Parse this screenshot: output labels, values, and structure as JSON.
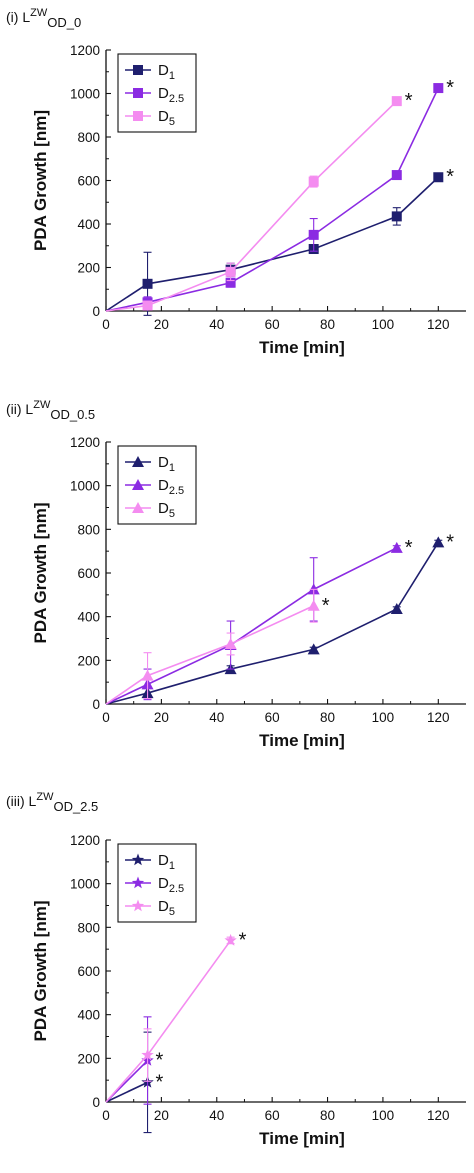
{
  "chart_data": [
    {
      "type": "line",
      "panel_label": "(i) L",
      "panel_sup": "ZW",
      "panel_sub": "OD_0",
      "xlabel": "Time [min]",
      "ylabel": "PDA Growth [nm]",
      "xlim": [
        0,
        130
      ],
      "ylim": [
        0,
        1200
      ],
      "xticks": [
        0,
        20,
        40,
        60,
        80,
        100,
        120
      ],
      "yticks": [
        0,
        200,
        400,
        600,
        800,
        1000,
        1200
      ],
      "marker": "square",
      "legend_position": "top-left",
      "series": [
        {
          "name": "D",
          "sub": "1",
          "color": "#1f1f6e",
          "points": [
            [
              0,
              0
            ],
            [
              15,
              125
            ],
            [
              45,
              190
            ],
            [
              75,
              285
            ],
            [
              105,
              435
            ],
            [
              120,
              615
            ]
          ],
          "err": [
            0,
            145,
            30,
            15,
            40,
            15
          ],
          "star_after_last": true
        },
        {
          "name": "D",
          "sub": "2.5",
          "color": "#8b2be2",
          "points": [
            [
              0,
              0
            ],
            [
              15,
              40
            ],
            [
              45,
              130
            ],
            [
              75,
              350
            ],
            [
              105,
              625
            ],
            [
              120,
              1025
            ]
          ],
          "err": [
            0,
            25,
            20,
            75,
            15,
            15
          ],
          "star_after_last": true
        },
        {
          "name": "D",
          "sub": "5",
          "color": "#f48cf0",
          "points": [
            [
              0,
              0
            ],
            [
              15,
              25
            ],
            [
              45,
              180
            ],
            [
              75,
              595
            ],
            [
              105,
              965
            ]
          ],
          "err": [
            0,
            20,
            40,
            25,
            10
          ],
          "star_after_last": true
        }
      ],
      "star": "*"
    },
    {
      "type": "line",
      "panel_label": "(ii) L",
      "panel_sup": "ZW",
      "panel_sub": "OD_0.5",
      "xlabel": "Time [min]",
      "ylabel": "PDA Growth [nm]",
      "xlim": [
        0,
        130
      ],
      "ylim": [
        0,
        1200
      ],
      "xticks": [
        0,
        20,
        40,
        60,
        80,
        100,
        120
      ],
      "yticks": [
        0,
        200,
        400,
        600,
        800,
        1000,
        1200
      ],
      "marker": "triangle",
      "legend_position": "top-left",
      "series": [
        {
          "name": "D",
          "sub": "1",
          "color": "#1f1f6e",
          "points": [
            [
              0,
              0
            ],
            [
              15,
              50
            ],
            [
              45,
              160
            ],
            [
              75,
              250
            ],
            [
              105,
              435
            ],
            [
              120,
              740
            ]
          ],
          "err": [
            0,
            25,
            15,
            10,
            10,
            10
          ],
          "star_after_last": true
        },
        {
          "name": "D",
          "sub": "2.5",
          "color": "#8b2be2",
          "points": [
            [
              0,
              0
            ],
            [
              15,
              90
            ],
            [
              45,
              270
            ],
            [
              75,
              525
            ],
            [
              105,
              715
            ]
          ],
          "err": [
            0,
            70,
            110,
            145,
            10
          ],
          "star_after_last": true
        },
        {
          "name": "D",
          "sub": "5",
          "color": "#f48cf0",
          "points": [
            [
              0,
              0
            ],
            [
              15,
              130
            ],
            [
              45,
              275
            ],
            [
              75,
              450
            ]
          ],
          "err": [
            0,
            105,
            50,
            75
          ],
          "star_after_last": true
        }
      ],
      "star": "*"
    },
    {
      "type": "line",
      "panel_label": "(iii) L",
      "panel_sup": "ZW",
      "panel_sub": "OD_2.5",
      "xlabel": "Time [min]",
      "ylabel": "PDA Growth [nm]",
      "xlim": [
        0,
        130
      ],
      "ylim": [
        0,
        1200
      ],
      "xticks": [
        0,
        20,
        40,
        60,
        80,
        100,
        120
      ],
      "yticks": [
        0,
        200,
        400,
        600,
        800,
        1000,
        1200
      ],
      "marker": "star",
      "legend_position": "top-left",
      "series": [
        {
          "name": "D",
          "sub": "1",
          "color": "#1f1f6e",
          "points": [
            [
              0,
              0
            ],
            [
              15,
              90
            ]
          ],
          "err": [
            0,
            230
          ],
          "star_after_last": true
        },
        {
          "name": "D",
          "sub": "2.5",
          "color": "#8b2be2",
          "points": [
            [
              0,
              0
            ],
            [
              15,
              190
            ]
          ],
          "err": [
            0,
            200
          ],
          "star_after_last": true
        },
        {
          "name": "D",
          "sub": "5",
          "color": "#f48cf0",
          "points": [
            [
              0,
              0
            ],
            [
              15,
              215
            ],
            [
              45,
              740
            ]
          ],
          "err": [
            0,
            120,
            15
          ],
          "star_after_last": true
        }
      ],
      "star": "*"
    }
  ]
}
